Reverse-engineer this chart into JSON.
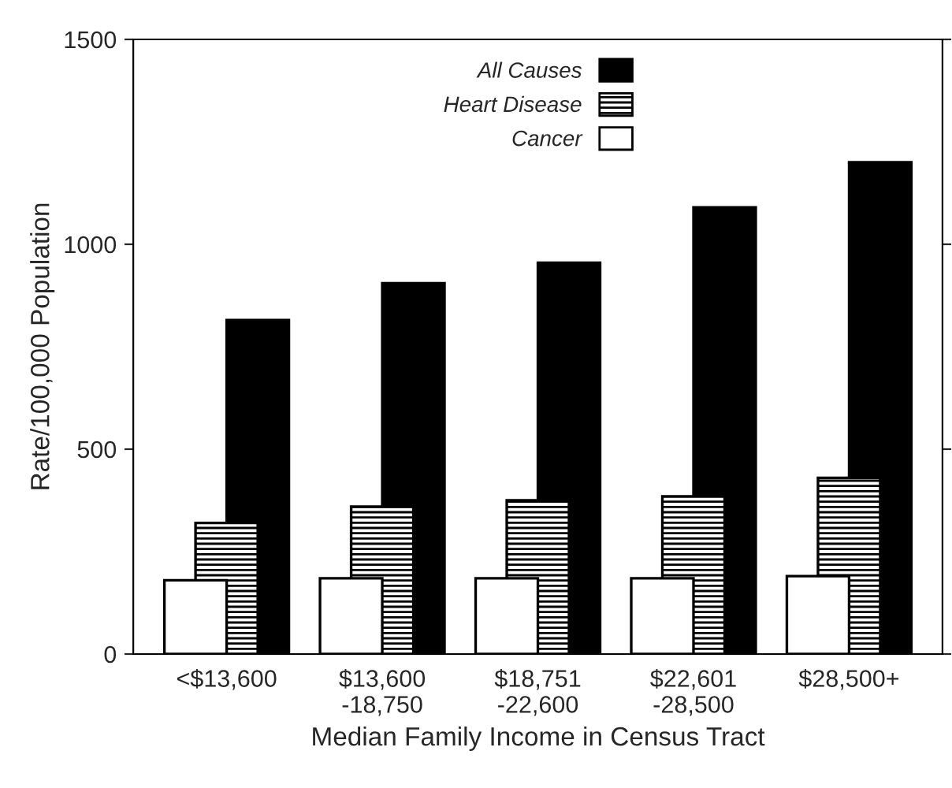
{
  "chart_data": {
    "type": "bar",
    "xlabel": "Median Family Income in Census Tract",
    "ylabel": "Rate/100,000 Population",
    "categories": [
      "<$13,600",
      "$13,600\n-18,750",
      "$18,751\n-22,600",
      "$22,601\n-28,500",
      "$28,500+"
    ],
    "series": [
      {
        "name": "All Causes",
        "color": "#000000",
        "values": [
          815,
          905,
          955,
          1090,
          1200
        ]
      },
      {
        "name": "Heart Disease",
        "color": "#000000",
        "values": [
          320,
          360,
          375,
          385,
          430
        ]
      },
      {
        "name": "Cancer",
        "color": "#ffffff",
        "values": [
          180,
          185,
          185,
          185,
          190
        ]
      }
    ],
    "ylim": [
      0,
      1500
    ],
    "yticks": [
      0,
      500,
      1000,
      1500
    ],
    "legend": "top",
    "grid": false
  }
}
